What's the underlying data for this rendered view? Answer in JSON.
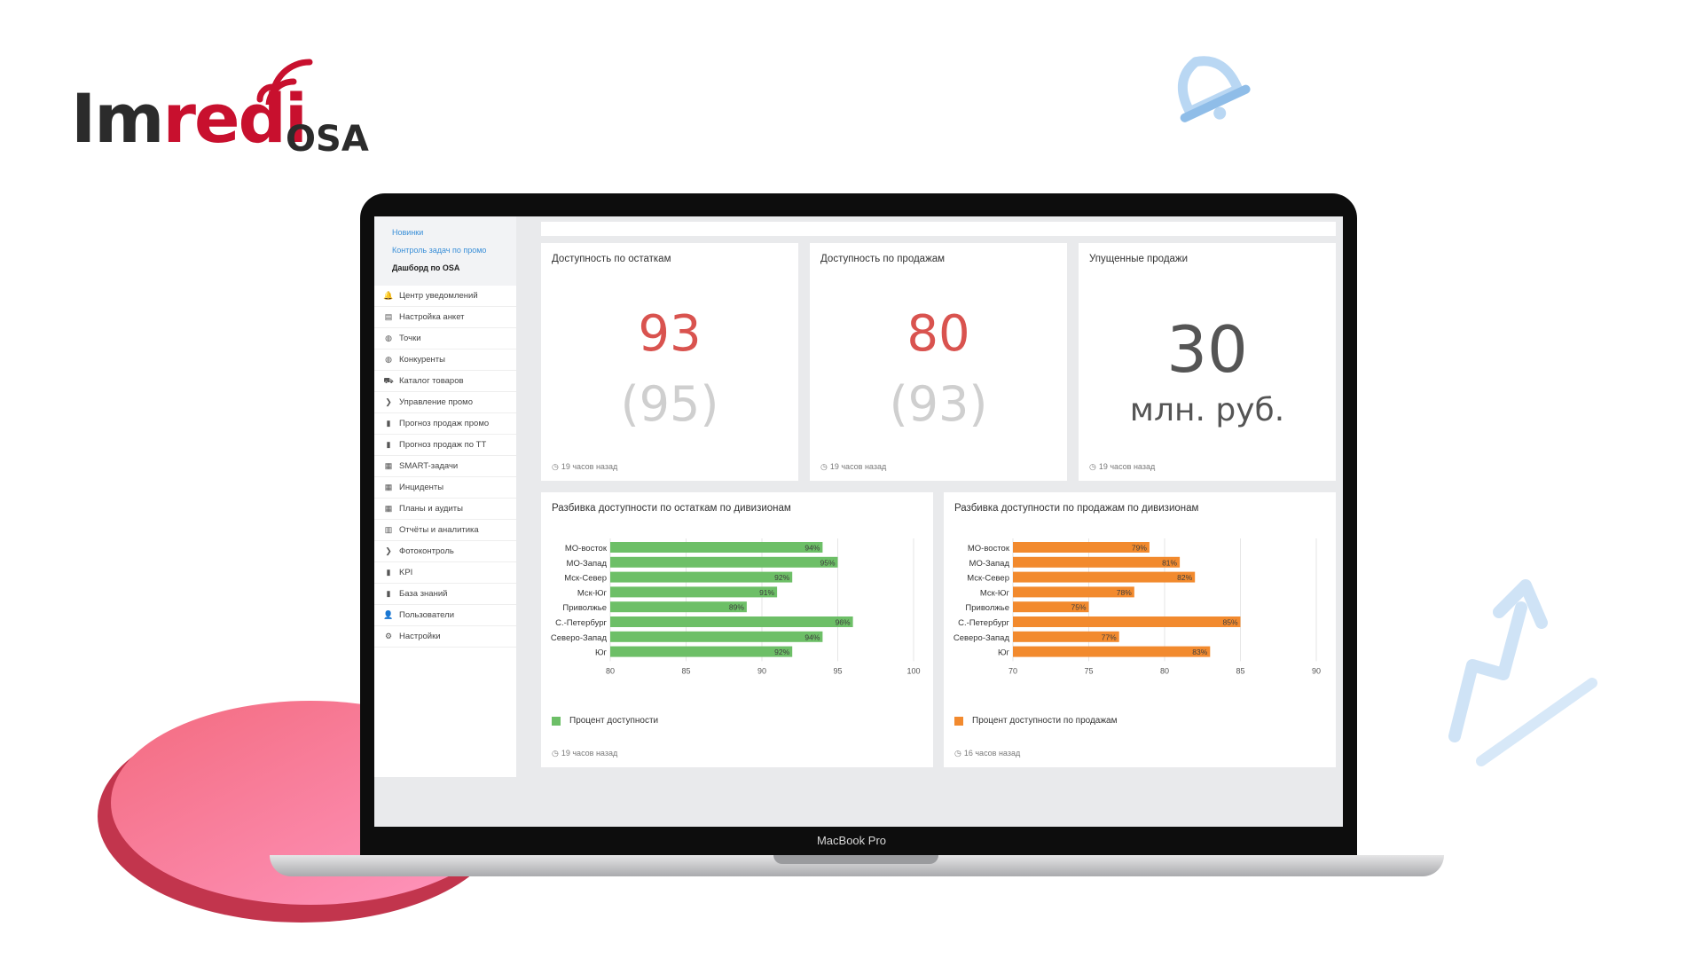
{
  "brand": {
    "name_part1": "Im",
    "name_part2": "redi",
    "suffix": "OSA",
    "red": "#c8102e",
    "dark": "#2b2b2b"
  },
  "laptop": {
    "model_label": "MacBook Pro"
  },
  "sidebar": {
    "sub_links": [
      {
        "label": "Новинки",
        "active": false
      },
      {
        "label": "Контроль задач по промо",
        "active": false
      },
      {
        "label": "Дашборд по OSA",
        "active": true
      }
    ],
    "items": [
      {
        "label": "Центр уведомлений",
        "icon": "bell-icon",
        "glyph": "🔔"
      },
      {
        "label": "Настройка анкет",
        "icon": "file-icon",
        "glyph": "▤"
      },
      {
        "label": "Точки",
        "icon": "globe-icon",
        "glyph": "◍"
      },
      {
        "label": "Конкуренты",
        "icon": "globe-icon",
        "glyph": "◍"
      },
      {
        "label": "Каталог товаров",
        "icon": "cart-icon",
        "glyph": "⛟"
      },
      {
        "label": "Управление промо",
        "icon": "chevron-right-icon",
        "glyph": "❯"
      },
      {
        "label": "Прогноз продаж промо",
        "icon": "bar-chart-icon",
        "glyph": "▮"
      },
      {
        "label": "Прогноз продаж по ТТ",
        "icon": "bar-chart-icon",
        "glyph": "▮"
      },
      {
        "label": "SMART-задачи",
        "icon": "table-icon",
        "glyph": "▦"
      },
      {
        "label": "Инциденты",
        "icon": "table-icon",
        "glyph": "▦"
      },
      {
        "label": "Планы и аудиты",
        "icon": "calendar-icon",
        "glyph": "▦"
      },
      {
        "label": "Отчёты и аналитика",
        "icon": "report-icon",
        "glyph": "▥"
      },
      {
        "label": "Фотоконтроль",
        "icon": "chevron-right-icon",
        "glyph": "❯"
      },
      {
        "label": "KPI",
        "icon": "bar-chart-icon",
        "glyph": "▮"
      },
      {
        "label": "База знаний",
        "icon": "book-icon",
        "glyph": "▮"
      },
      {
        "label": "Пользователи",
        "icon": "user-icon",
        "glyph": "👤"
      },
      {
        "label": "Настройки",
        "icon": "gear-icon",
        "glyph": "⚙"
      }
    ]
  },
  "cards": {
    "stock": {
      "title": "Доступность по остаткам",
      "value": "93",
      "prev": "(95)",
      "time": "19 часов назад",
      "value_color": "#d9534f"
    },
    "sales": {
      "title": "Доступность по продажам",
      "value": "80",
      "prev": "(93)",
      "time": "19 часов назад",
      "value_color": "#d9534f"
    },
    "lost": {
      "title": "Упущенные продажи",
      "value": "30",
      "unit": "млн. руб.",
      "time": "19 часов назад"
    }
  },
  "charts": {
    "stock": {
      "title": "Разбивка доступности по остаткам по дивизионам",
      "legend": "Процент доступности",
      "time": "19 часов назад",
      "color": "#6dbf67"
    },
    "sales": {
      "title": "Разбивка доступности по продажам по дивизионам",
      "legend": "Процент доступности по продажам",
      "time": "16 часов назад",
      "color": "#f28a2e"
    }
  },
  "chart_data": [
    {
      "type": "bar",
      "orientation": "horizontal",
      "title": "Разбивка доступности по остаткам по дивизионам",
      "categories": [
        "МО-восток",
        "МО-Запад",
        "Мск-Север",
        "Мск-Юг",
        "Приволжье",
        "С.-Петербург",
        "Северо-Запад",
        "Юг"
      ],
      "series": [
        {
          "name": "Процент доступности",
          "values": [
            94,
            95,
            92,
            91,
            89,
            96,
            94,
            92
          ],
          "labels": [
            "94%",
            "95%",
            "92%",
            "91%",
            "89%",
            "96%",
            "94%",
            "92%"
          ]
        }
      ],
      "xlim": [
        80,
        100
      ],
      "xticks": [
        "80",
        "85",
        "90",
        "95",
        "100"
      ],
      "grid": true,
      "legend_position": "bottom-left"
    },
    {
      "type": "bar",
      "orientation": "horizontal",
      "title": "Разбивка доступности по продажам по дивизионам",
      "categories": [
        "МО-восток",
        "МО-Запад",
        "Мск-Север",
        "Мск-Юг",
        "Приволжье",
        "С.-Петербург",
        "Северо-Запад",
        "Юг"
      ],
      "series": [
        {
          "name": "Процент доступности по продажам",
          "values": [
            79,
            81,
            82,
            78,
            75,
            85,
            77,
            83
          ],
          "labels": [
            "79%",
            "81%",
            "82%",
            "78%",
            "75%",
            "85%",
            "77%",
            "83%"
          ]
        }
      ],
      "xlim": [
        70,
        90
      ],
      "xticks": [
        "70",
        "75",
        "80",
        "85",
        "90"
      ],
      "grid": true,
      "legend_position": "bottom-left"
    }
  ]
}
